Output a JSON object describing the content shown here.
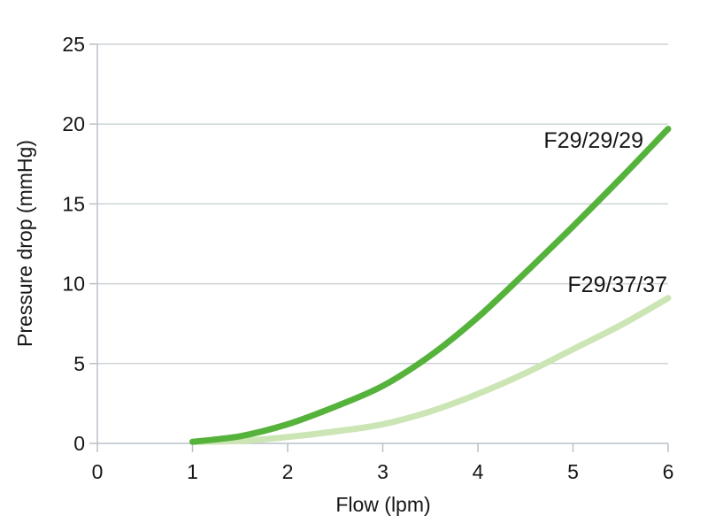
{
  "chart_data": {
    "type": "line",
    "title": "",
    "xlabel": "Flow (lpm)",
    "ylabel": "Pressure drop (mmHg)",
    "xlim": [
      0,
      6
    ],
    "ylim": [
      0,
      25
    ],
    "xticks": [
      0,
      1,
      2,
      3,
      4,
      5,
      6
    ],
    "yticks": [
      0,
      5,
      10,
      15,
      20,
      25
    ],
    "xtick_labels": [
      "0",
      "1",
      "2",
      "3",
      "4",
      "5",
      "6"
    ],
    "ytick_labels": [
      "0",
      "5",
      "10",
      "15",
      "20",
      "25"
    ],
    "grid": "horizontal",
    "legend_position": "inline-labels-on-plot",
    "series": [
      {
        "name": "F29/29/29",
        "color": "#55b23b",
        "x": [
          1.0,
          1.5,
          2.0,
          2.5,
          3.0,
          3.5,
          4.0,
          4.5,
          5.0,
          5.5,
          6.0
        ],
        "values": [
          0.1,
          0.45,
          1.2,
          2.3,
          3.6,
          5.5,
          7.9,
          10.7,
          13.6,
          16.6,
          19.7
        ]
      },
      {
        "name": "F29/37/37",
        "color": "#cbe5b4",
        "x": [
          1.0,
          1.5,
          2.0,
          2.5,
          3.0,
          3.5,
          4.0,
          4.5,
          5.0,
          5.5,
          6.0
        ],
        "values": [
          0.1,
          0.15,
          0.4,
          0.75,
          1.2,
          2.0,
          3.1,
          4.4,
          5.9,
          7.4,
          9.1
        ]
      }
    ]
  },
  "style_colors": {
    "gridline": "#cdd3d6",
    "axis": "#b9c1c7",
    "text": "#161616"
  }
}
